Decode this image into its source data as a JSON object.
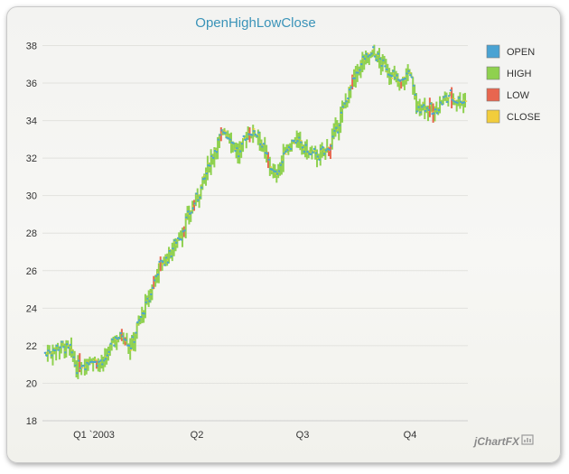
{
  "chart_data": {
    "type": "ohlc",
    "title": "OpenHighLowClose",
    "y_ticks": [
      18,
      20,
      22,
      24,
      26,
      28,
      30,
      32,
      34,
      36,
      38
    ],
    "ylim": [
      18,
      38.6
    ],
    "x_ticks": [
      "Q1 `2003",
      "Q2",
      "Q3",
      "Q4"
    ],
    "grid": true,
    "legend_position": "right",
    "series": [
      {
        "name": "OPEN",
        "color": "#4aa3d3"
      },
      {
        "name": "HIGH",
        "color": "#8fd14f"
      },
      {
        "name": "LOW",
        "color": "#e8664f"
      },
      {
        "name": "CLOSE",
        "color": "#f2cd3c"
      }
    ],
    "trading_days": 250,
    "close_trend": [
      [
        0,
        21.6
      ],
      [
        8,
        22.0
      ],
      [
        14,
        21.8
      ],
      [
        18,
        20.8
      ],
      [
        26,
        21.3
      ],
      [
        34,
        21.0
      ],
      [
        40,
        22.3
      ],
      [
        46,
        22.6
      ],
      [
        50,
        21.9
      ],
      [
        56,
        23.5
      ],
      [
        62,
        24.8
      ],
      [
        66,
        26.1
      ],
      [
        74,
        27.0
      ],
      [
        80,
        28.0
      ],
      [
        86,
        29.2
      ],
      [
        90,
        30.0
      ],
      [
        94,
        31.0
      ],
      [
        100,
        32.5
      ],
      [
        106,
        33.5
      ],
      [
        110,
        33.0
      ],
      [
        114,
        32.2
      ],
      [
        120,
        33.4
      ],
      [
        126,
        33.3
      ],
      [
        130,
        32.2
      ],
      [
        136,
        31.0
      ],
      [
        142,
        32.4
      ],
      [
        148,
        33.0
      ],
      [
        156,
        32.3
      ],
      [
        162,
        32.1
      ],
      [
        168,
        32.6
      ],
      [
        172,
        33.5
      ],
      [
        176,
        34.5
      ],
      [
        182,
        36.1
      ],
      [
        188,
        37.2
      ],
      [
        194,
        37.6
      ],
      [
        200,
        37.0
      ],
      [
        206,
        36.4
      ],
      [
        210,
        35.9
      ],
      [
        216,
        36.7
      ],
      [
        220,
        34.6
      ],
      [
        224,
        34.9
      ],
      [
        230,
        34.4
      ],
      [
        236,
        35.1
      ],
      [
        240,
        35.3
      ],
      [
        244,
        35.1
      ]
    ]
  },
  "watermark": "jChartFX"
}
